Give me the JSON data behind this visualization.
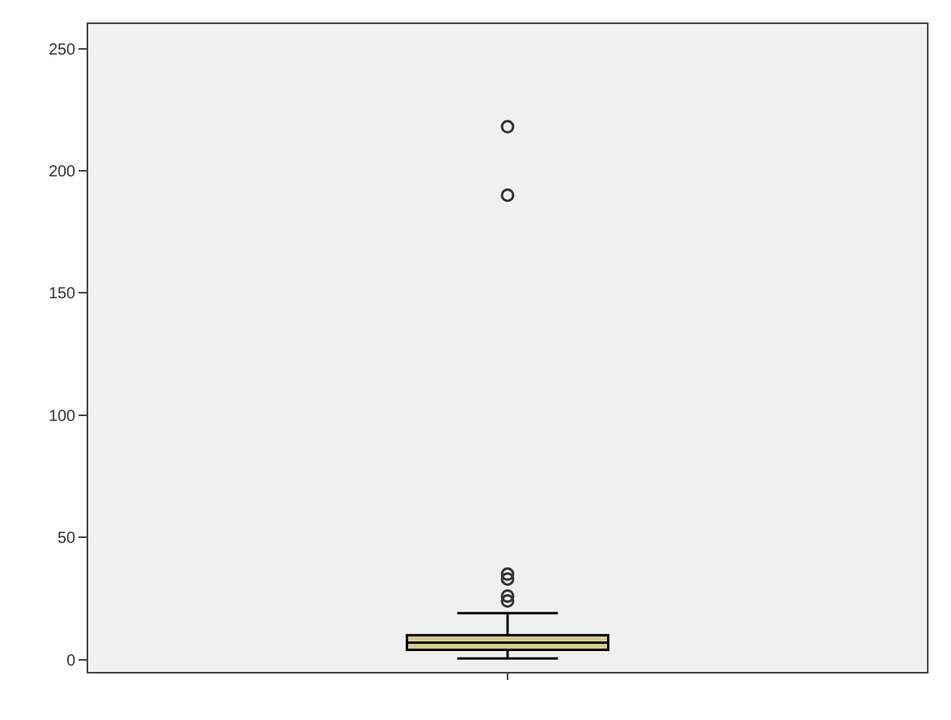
{
  "chart_data": {
    "type": "box",
    "categories": [
      null
    ],
    "series": [
      {
        "color": "#d6cc8e",
        "boxes": [
          {
            "low": 0.5,
            "q1": 4,
            "median": 7,
            "q3": 10,
            "high": 19,
            "outliers": [
              24,
              26,
              33,
              35,
              190,
              218
            ]
          }
        ]
      }
    ],
    "ylim": [
      -5,
      260
    ],
    "yticks": [
      0,
      50,
      100,
      150,
      200,
      250
    ],
    "grid": false
  }
}
